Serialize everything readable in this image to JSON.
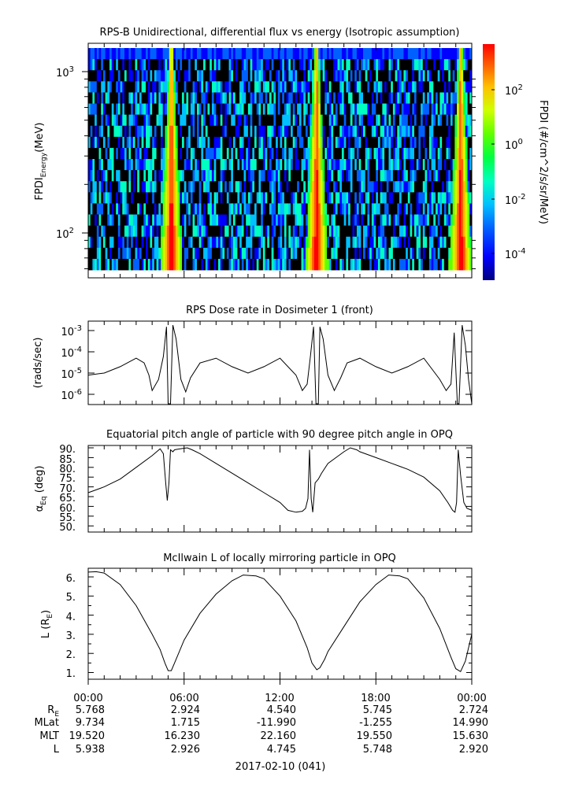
{
  "panels": {
    "spectrogram": {
      "title": "RPS-B  Unidirectional, differential flux vs energy (Isotropic assumption)",
      "ylabel_main": "FPDI",
      "ylabel_sub": "Energy",
      "ylabel_unit": "(MeV)",
      "yticks": [
        {
          "label": "10",
          "exp": "2"
        },
        {
          "label": "10",
          "exp": "3"
        }
      ],
      "colorbar_label": "FPDI (#/cm^2/s/sr/MeV)",
      "colorbar_ticks": [
        {
          "label": "10",
          "exp": "2"
        },
        {
          "label": "10",
          "exp": "0"
        },
        {
          "label": "10",
          "exp": "-2"
        },
        {
          "label": "10",
          "exp": "-4"
        }
      ]
    },
    "dose": {
      "title": "RPS  Dose rate in Dosimeter 1 (front)",
      "ylabel": "(rads/sec)",
      "yticks": [
        {
          "label": "10",
          "exp": "-3"
        },
        {
          "label": "10",
          "exp": "-4"
        },
        {
          "label": "10",
          "exp": "-5"
        },
        {
          "label": "10",
          "exp": "-6"
        }
      ]
    },
    "pitch": {
      "title": "Equatorial pitch angle of particle with 90 degree pitch angle in OPQ",
      "ylabel_main": "α",
      "ylabel_sub": "Eq",
      "ylabel_unit": " (deg)",
      "yticks": [
        "90.",
        "85.",
        "80.",
        "75.",
        "70.",
        "65.",
        "60.",
        "55.",
        "50."
      ]
    },
    "lshell": {
      "title": "McIlwain L of locally mirroring particle in OPQ",
      "ylabel_main": "L (R",
      "ylabel_sub": "E",
      "ylabel_end": ")",
      "yticks": [
        "6.",
        "5.",
        "4.",
        "3.",
        "2.",
        "1."
      ]
    }
  },
  "xaxis": {
    "ticks": [
      "00:00",
      "06:00",
      "12:00",
      "18:00",
      "00:00"
    ],
    "date_label": "2017-02-10 (041)"
  },
  "ephemeris": {
    "rows": [
      {
        "label": "R",
        "sub": "E",
        "values": [
          "5.768",
          "2.924",
          "4.540",
          "5.745",
          "2.724"
        ]
      },
      {
        "label": "MLat",
        "sub": "",
        "values": [
          "9.734",
          "1.715",
          "-11.990",
          "-1.255",
          "14.990"
        ]
      },
      {
        "label": "MLT",
        "sub": "",
        "values": [
          "19.520",
          "16.230",
          "22.160",
          "19.550",
          "15.630"
        ]
      },
      {
        "label": "L",
        "sub": "",
        "values": [
          "5.938",
          "2.926",
          "4.745",
          "5.748",
          "2.920"
        ]
      }
    ]
  },
  "chart_data": [
    {
      "type": "heatmap",
      "title": "RPS-B  Unidirectional, differential flux vs energy (Isotropic assumption)",
      "xlabel": "",
      "ylabel": "FPDI Energy (MeV)",
      "x_range_hours": [
        0,
        24
      ],
      "y_scale": "log",
      "ylim": [
        55,
        1400
      ],
      "colorbar": {
        "scale": "log",
        "range": [
          1e-05,
          2000
        ],
        "label": "FPDI (#/cm^2/s/sr/MeV)"
      },
      "high_flux_bands_hours": [
        5.2,
        14.3,
        23.3
      ],
      "colormap": [
        "#00007f",
        "#0000ff",
        "#0060ff",
        "#00c0ff",
        "#00ffc0",
        "#00ff40",
        "#60ff00",
        "#d0ff00",
        "#ffc000",
        "#ff6000",
        "#ff0000"
      ]
    },
    {
      "type": "line",
      "title": "RPS  Dose rate in Dosimeter 1 (front)",
      "xlabel": "",
      "ylabel": "(rads/sec)",
      "y_scale": "log",
      "ylim": [
        3e-07,
        0.003
      ],
      "x": [
        0,
        1,
        2,
        3,
        3.5,
        3.8,
        4.0,
        4.4,
        4.7,
        4.9,
        5.0,
        5.15,
        5.3,
        5.5,
        5.8,
        6.1,
        6.4,
        7,
        8,
        9,
        10,
        11,
        12,
        13,
        13.4,
        13.7,
        13.9,
        14.1,
        14.25,
        14.4,
        14.5,
        14.7,
        15.0,
        15.4,
        15.8,
        16.2,
        17,
        18,
        19,
        20,
        21,
        22,
        22.4,
        22.7,
        22.9,
        23.1,
        23.2,
        23.4,
        23.6,
        23.8,
        24
      ],
      "y": [
        8e-06,
        1e-05,
        2e-05,
        5e-05,
        3e-05,
        8e-06,
        1.5e-06,
        5e-06,
        6e-05,
        0.0015,
        3e-07,
        3e-07,
        0.0018,
        0.0004,
        5e-06,
        1.3e-06,
        6e-06,
        3e-05,
        5e-05,
        2e-05,
        1e-05,
        2e-05,
        5e-05,
        8e-06,
        1.5e-06,
        3e-06,
        6e-05,
        0.0015,
        3e-07,
        3e-07,
        0.0015,
        0.0004,
        8e-06,
        1.5e-06,
        6e-06,
        3e-05,
        5e-05,
        2e-05,
        1e-05,
        2e-05,
        5e-05,
        5e-06,
        1.5e-06,
        3e-06,
        0.0008,
        3e-07,
        3e-07,
        0.0018,
        0.0002,
        5e-06,
        3e-07
      ]
    },
    {
      "type": "line",
      "title": "Equatorial pitch angle of particle with 90 degree pitch angle in OPQ",
      "xlabel": "",
      "ylabel": "αEq (deg)",
      "ylim": [
        49,
        91.5
      ],
      "x": [
        0,
        1,
        2,
        3,
        4,
        4.5,
        4.7,
        4.85,
        4.95,
        5.05,
        5.15,
        5.3,
        5.4,
        5.6,
        6.0,
        6.2,
        6.5,
        7,
        8,
        9,
        10,
        11,
        12,
        12.5,
        13,
        13.4,
        13.6,
        13.75,
        13.85,
        13.95,
        14.05,
        14.2,
        14.4,
        14.6,
        15,
        16,
        16.4,
        16.8,
        17,
        18,
        19,
        20,
        21,
        22,
        22.5,
        22.8,
        22.95,
        23.05,
        23.15,
        23.3,
        23.5,
        23.7,
        24
      ],
      "y": [
        67,
        70,
        74,
        80,
        86,
        89.5,
        87,
        72,
        63,
        72,
        89,
        88,
        89,
        89.3,
        89.8,
        90,
        89,
        87,
        82,
        77,
        72,
        67,
        62,
        58,
        57,
        57.5,
        59,
        64,
        89,
        64,
        57,
        72,
        74,
        77,
        82,
        88,
        90,
        89,
        88,
        85,
        82,
        79,
        75,
        68,
        62,
        58,
        57,
        62,
        89,
        76,
        62,
        59,
        58
      ]
    },
    {
      "type": "line",
      "title": "McIlwain L of locally mirroring particle in OPQ",
      "xlabel": "",
      "ylabel": "L (RE)",
      "ylim": [
        0.7,
        6.5
      ],
      "x": [
        0,
        0.5,
        1,
        2,
        3,
        4,
        4.5,
        4.8,
        5.0,
        5.2,
        5.4,
        5.7,
        6,
        7,
        8,
        9,
        9.7,
        10.5,
        11,
        12,
        13,
        13.7,
        14.0,
        14.3,
        14.5,
        14.8,
        15,
        16,
        17,
        18,
        18.8,
        19.5,
        20,
        21,
        22,
        22.7,
        23.0,
        23.3,
        23.6,
        24
      ],
      "y": [
        6.25,
        6.27,
        6.2,
        5.6,
        4.5,
        3.0,
        2.2,
        1.5,
        1.1,
        1.1,
        1.5,
        2.1,
        2.7,
        4.1,
        5.1,
        5.8,
        6.1,
        6.05,
        5.9,
        5.0,
        3.7,
        2.3,
        1.5,
        1.15,
        1.25,
        1.7,
        2.1,
        3.4,
        4.7,
        5.6,
        6.1,
        6.05,
        5.9,
        4.9,
        3.3,
        1.8,
        1.2,
        1.05,
        1.6,
        3.0
      ]
    }
  ]
}
